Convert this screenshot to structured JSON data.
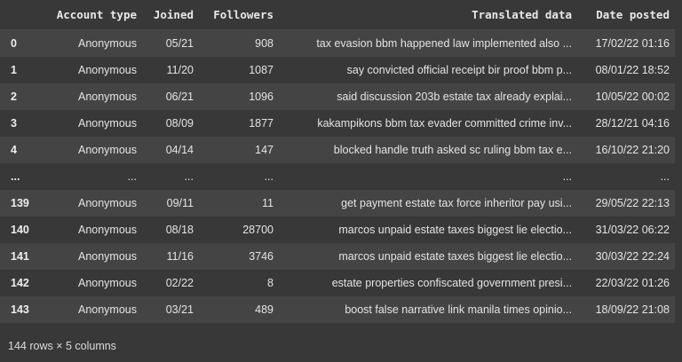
{
  "dataframe": {
    "columns": [
      "",
      "Account type",
      "Joined",
      "Followers",
      "Translated data",
      "Date posted"
    ],
    "rows": [
      [
        "0",
        "Anonymous",
        "05/21",
        "908",
        "tax evasion bbm happened law implemented also ...",
        "17/02/22 01:16"
      ],
      [
        "1",
        "Anonymous",
        "11/20",
        "1087",
        "say convicted official receipt bir proof bbm p...",
        "08/01/22 18:52"
      ],
      [
        "2",
        "Anonymous",
        "06/21",
        "1096",
        "said discussion 203b estate tax already explai...",
        "10/05/22 00:02"
      ],
      [
        "3",
        "Anonymous",
        "08/09",
        "1877",
        "kakampikons bbm tax evader committed crime inv...",
        "28/12/21 04:16"
      ],
      [
        "4",
        "Anonymous",
        "04/14",
        "147",
        "blocked handle truth asked sc ruling bbm tax e...",
        "16/10/22 21:20"
      ],
      [
        "...",
        "...",
        "...",
        "...",
        "...",
        "..."
      ],
      [
        "139",
        "Anonymous",
        "09/11",
        "11",
        "get payment estate tax force inheritor pay usi...",
        "29/05/22 22:13"
      ],
      [
        "140",
        "Anonymous",
        "08/18",
        "28700",
        "marcos unpaid estate taxes biggest lie electio...",
        "31/03/22 06:22"
      ],
      [
        "141",
        "Anonymous",
        "11/16",
        "3746",
        "marcos unpaid estate taxes biggest lie electio...",
        "30/03/22 22:24"
      ],
      [
        "142",
        "Anonymous",
        "02/22",
        "8",
        "estate properties confiscated government presi...",
        "22/03/22 01:26"
      ],
      [
        "143",
        "Anonymous",
        "03/21",
        "489",
        "boost false narrative link manila times opinio...",
        "18/09/22 21:08"
      ]
    ],
    "shape_note": "144 rows × 5 columns"
  }
}
